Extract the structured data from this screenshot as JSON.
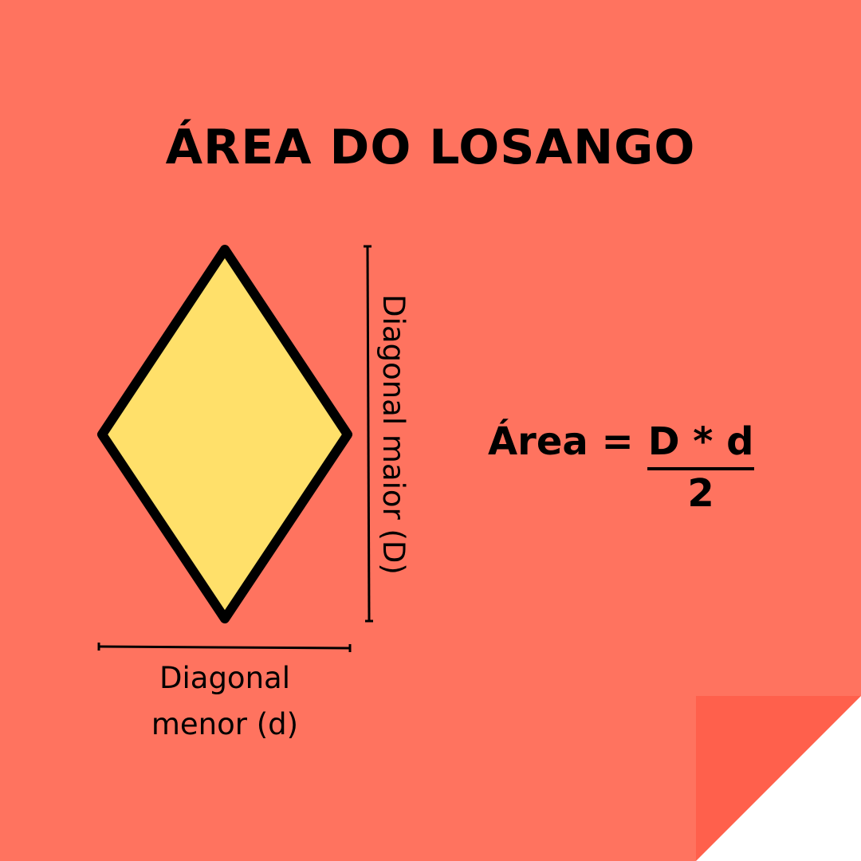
{
  "colors": {
    "background": "#ff735f",
    "fold": "#ff604c",
    "rhombus_fill": "#ffe06a",
    "stroke": "#000000"
  },
  "title": "ÁREA DO LOSANGO",
  "labels": {
    "minor_diagonal_line1": "Diagonal",
    "minor_diagonal_line2": "menor (d)",
    "major_diagonal": "Diagonal maior (D)"
  },
  "formula": {
    "lhs": "Área =",
    "numerator": "D * d",
    "denominator": "2"
  }
}
